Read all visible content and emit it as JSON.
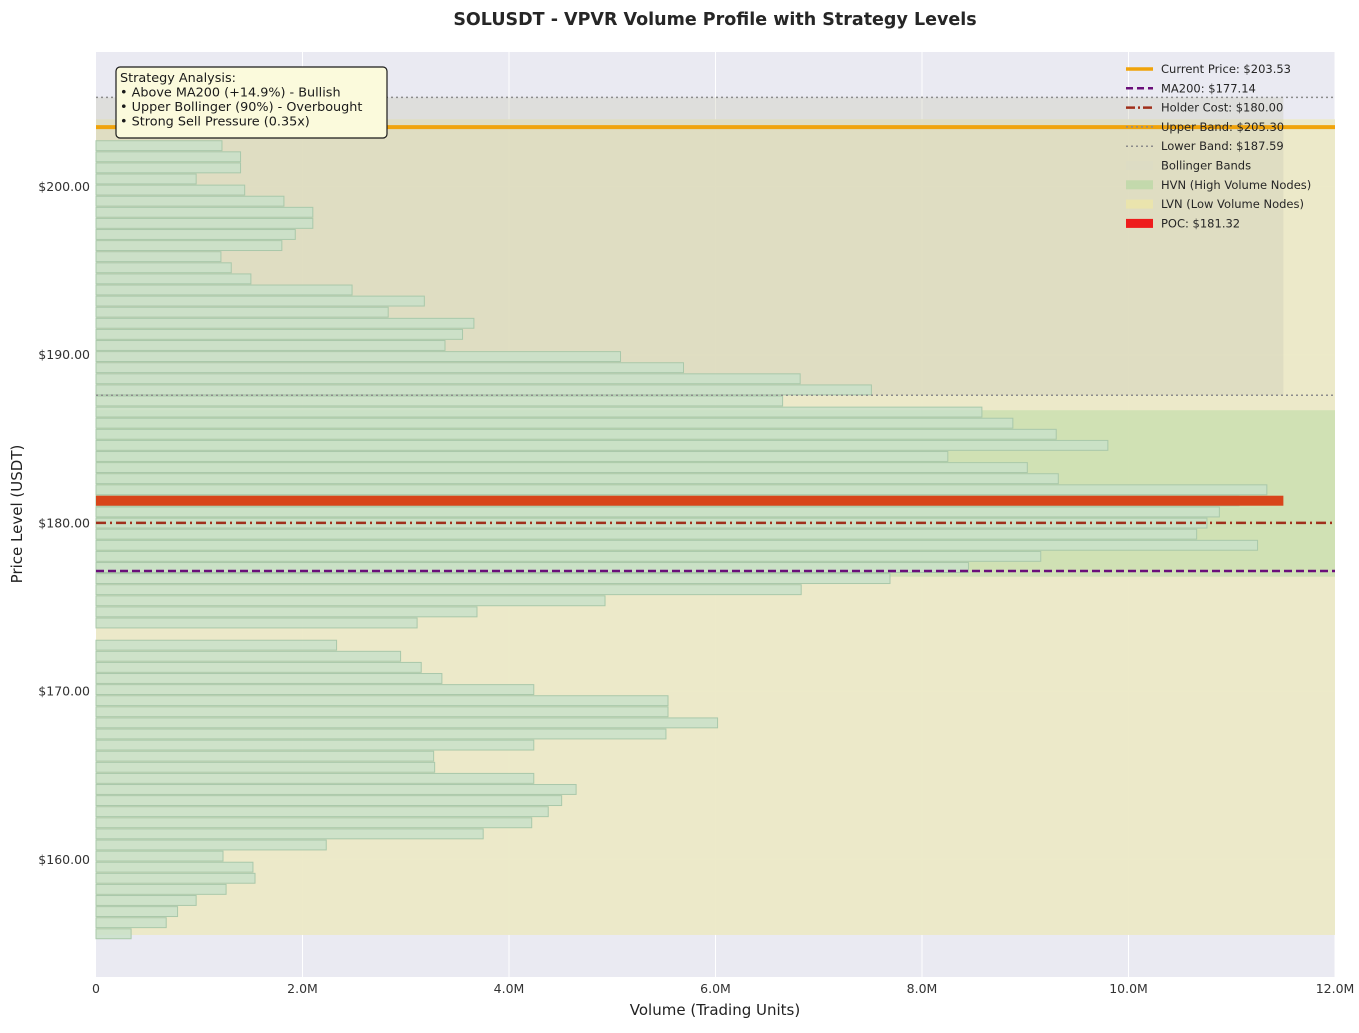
{
  "chart_data": {
    "type": "bar",
    "orientation": "horizontal",
    "title": "SOLUSDT - VPVR Volume Profile with Strategy Levels",
    "xlabel": "Volume (Trading Units)",
    "ylabel": "Price Level (USDT)",
    "xlim": [
      0,
      12000000
    ],
    "ylim": [
      153.0,
      208.0
    ],
    "xticks": [
      0,
      2000000,
      4000000,
      6000000,
      8000000,
      10000000,
      12000000
    ],
    "xtick_labels": [
      "0",
      "2.0M",
      "4.0M",
      "6.0M",
      "8.0M",
      "10.0M",
      "12.0M"
    ],
    "yticks": [
      160,
      170,
      180,
      190,
      200
    ],
    "ytick_labels": [
      "$160.00",
      "$170.00",
      "$180.00",
      "$190.00",
      "$200.00"
    ],
    "grid": true,
    "legend_position": "top-right",
    "bin_height": 0.66,
    "bins": [
      {
        "price": 155.57,
        "volume": 340000
      },
      {
        "price": 156.23,
        "volume": 680000
      },
      {
        "price": 156.89,
        "volume": 790000
      },
      {
        "price": 157.55,
        "volume": 970000
      },
      {
        "price": 158.21,
        "volume": 1260000
      },
      {
        "price": 158.87,
        "volume": 1540000
      },
      {
        "price": 159.53,
        "volume": 1520000
      },
      {
        "price": 160.19,
        "volume": 1230000
      },
      {
        "price": 160.85,
        "volume": 2230000
      },
      {
        "price": 161.51,
        "volume": 3750000
      },
      {
        "price": 162.17,
        "volume": 4220000
      },
      {
        "price": 162.83,
        "volume": 4380000
      },
      {
        "price": 163.49,
        "volume": 4510000
      },
      {
        "price": 164.15,
        "volume": 4650000
      },
      {
        "price": 164.81,
        "volume": 4240000
      },
      {
        "price": 165.47,
        "volume": 3280000
      },
      {
        "price": 166.13,
        "volume": 3270000
      },
      {
        "price": 166.79,
        "volume": 4240000
      },
      {
        "price": 167.45,
        "volume": 5520000
      },
      {
        "price": 168.11,
        "volume": 6020000
      },
      {
        "price": 168.77,
        "volume": 5540000
      },
      {
        "price": 169.43,
        "volume": 5540000
      },
      {
        "price": 170.09,
        "volume": 4240000
      },
      {
        "price": 170.75,
        "volume": 3350000
      },
      {
        "price": 171.41,
        "volume": 3150000
      },
      {
        "price": 172.07,
        "volume": 2950000
      },
      {
        "price": 172.73,
        "volume": 2330000
      },
      {
        "price": 173.39,
        "volume": 0
      },
      {
        "price": 174.05,
        "volume": 3110000
      },
      {
        "price": 174.71,
        "volume": 3690000
      },
      {
        "price": 175.37,
        "volume": 4930000
      },
      {
        "price": 176.03,
        "volume": 6830000
      },
      {
        "price": 176.69,
        "volume": 7690000
      },
      {
        "price": 177.35,
        "volume": 8450000
      },
      {
        "price": 178.01,
        "volume": 9150000
      },
      {
        "price": 178.67,
        "volume": 11250000
      },
      {
        "price": 179.33,
        "volume": 10660000
      },
      {
        "price": 179.99,
        "volume": 10760000
      },
      {
        "price": 180.65,
        "volume": 10880000
      },
      {
        "price": 181.31,
        "volume": 11070000
      },
      {
        "price": 181.97,
        "volume": 11340000
      },
      {
        "price": 182.63,
        "volume": 9320000
      },
      {
        "price": 183.29,
        "volume": 9020000
      },
      {
        "price": 183.95,
        "volume": 8250000
      },
      {
        "price": 184.61,
        "volume": 9800000
      },
      {
        "price": 185.27,
        "volume": 9300000
      },
      {
        "price": 185.93,
        "volume": 8880000
      },
      {
        "price": 186.59,
        "volume": 8580000
      },
      {
        "price": 187.25,
        "volume": 6650000
      },
      {
        "price": 187.91,
        "volume": 7510000
      },
      {
        "price": 188.57,
        "volume": 6820000
      },
      {
        "price": 189.23,
        "volume": 5690000
      },
      {
        "price": 189.89,
        "volume": 5080000
      },
      {
        "price": 190.55,
        "volume": 3380000
      },
      {
        "price": 191.21,
        "volume": 3550000
      },
      {
        "price": 191.87,
        "volume": 3660000
      },
      {
        "price": 192.53,
        "volume": 2830000
      },
      {
        "price": 193.19,
        "volume": 3180000
      },
      {
        "price": 193.85,
        "volume": 2480000
      },
      {
        "price": 194.51,
        "volume": 1500000
      },
      {
        "price": 195.17,
        "volume": 1310000
      },
      {
        "price": 195.83,
        "volume": 1210000
      },
      {
        "price": 196.49,
        "volume": 1800000
      },
      {
        "price": 197.15,
        "volume": 1930000
      },
      {
        "price": 197.81,
        "volume": 2100000
      },
      {
        "price": 198.47,
        "volume": 2100000
      },
      {
        "price": 199.13,
        "volume": 1820000
      },
      {
        "price": 199.79,
        "volume": 1440000
      },
      {
        "price": 200.45,
        "volume": 970000
      },
      {
        "price": 201.11,
        "volume": 1400000
      },
      {
        "price": 201.77,
        "volume": 1400000
      },
      {
        "price": 202.43,
        "volume": 1220000
      },
      {
        "price": 203.09,
        "volume": 0
      },
      {
        "price": 203.75,
        "volume": 0
      }
    ],
    "lines": {
      "current_price": 203.53,
      "ma200": 177.14,
      "holder_cost": 180.0,
      "upper_band": 205.3,
      "lower_band": 187.59,
      "poc": 181.32,
      "poc_volume": 11500000
    },
    "zones": {
      "bollinger": [
        187.59,
        205.3
      ],
      "bollinger_xmax": 11500000,
      "hvn": [
        176.8,
        186.7
      ],
      "lvn": [
        155.5,
        204.0
      ]
    },
    "legend": [
      {
        "label": "Current Price: $203.53",
        "style": "solid-thick",
        "color": "#f0a30a"
      },
      {
        "label": "MA200: $177.14",
        "style": "dashed",
        "color": "#6a0f7a"
      },
      {
        "label": "Holder Cost: $180.00",
        "style": "dashdot",
        "color": "#a0301c"
      },
      {
        "label": "Upper Band: $205.30",
        "style": "dotted",
        "color": "#8c8c8c"
      },
      {
        "label": "Lower Band: $187.59",
        "style": "dotted",
        "color": "#8c8c8c"
      },
      {
        "label": "Bollinger Bands",
        "style": "patch",
        "color": "#dcdcc4"
      },
      {
        "label": "HVN (High Volume Nodes)",
        "style": "patch",
        "color": "#bcd8a6"
      },
      {
        "label": "LVN (Low Volume Nodes)",
        "style": "patch",
        "color": "#ece6a8"
      },
      {
        "label": "POC: $181.32",
        "style": "patch",
        "color": "#ee1c1c"
      }
    ],
    "annotation": {
      "lines": [
        "Strategy Analysis:",
        "• Above MA200 (+14.9%) - Bullish",
        "• Upper Bollinger (90%) - Overbought",
        "• Strong Sell Pressure (0.35x)"
      ]
    },
    "colors": {
      "plot_bg": "#eaeaf2",
      "bar_fill": "#c9e1c9",
      "bar_edge": "#a9c8aa",
      "lvn_zone": "#ece9c6",
      "hvn_zone": "#cde0b1",
      "bollinger_zone": "#e0e0c6",
      "current_price": "#f0a30a",
      "ma200": "#6a0f7a",
      "holder_cost": "#a0301c",
      "band": "#8c8c8c",
      "poc": "#d8451a",
      "annot_bg": "#fbfadc"
    }
  }
}
